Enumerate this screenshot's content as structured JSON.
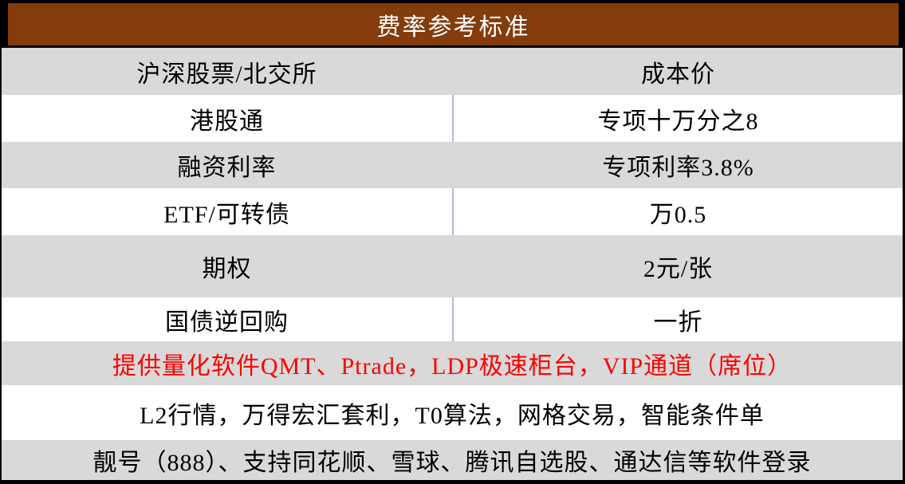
{
  "title": "费率参考标准",
  "colors": {
    "title_bg": "#843C0C",
    "title_text": "#FFFFFF",
    "row_gray": "#D9D9D9",
    "row_white": "#FFFFFF",
    "divider": "#AFBDD7",
    "frame_border": "#000000",
    "note_red": "#FF0000"
  },
  "rows": [
    {
      "label": "沪深股票/北交所",
      "value": "成本价"
    },
    {
      "label": "港股通",
      "value": "专项十万分之8"
    },
    {
      "label": "融资利率",
      "value": "专项利率3.8%"
    },
    {
      "label": "ETF/可转债",
      "value": "万0.5"
    },
    {
      "label": "期权",
      "value": "2元/张"
    },
    {
      "label": "国债逆回购",
      "value": "一折"
    }
  ],
  "notes": [
    {
      "text": "提供量化软件QMT、Ptrade，LDP极速柜台，VIP通道（席位）"
    },
    {
      "text": "L2行情，万得宏汇套利，T0算法，网格交易，智能条件单"
    },
    {
      "text": "靓号（888）、支持同花顺、雪球、腾讯自选股、通达信等软件登录"
    }
  ]
}
